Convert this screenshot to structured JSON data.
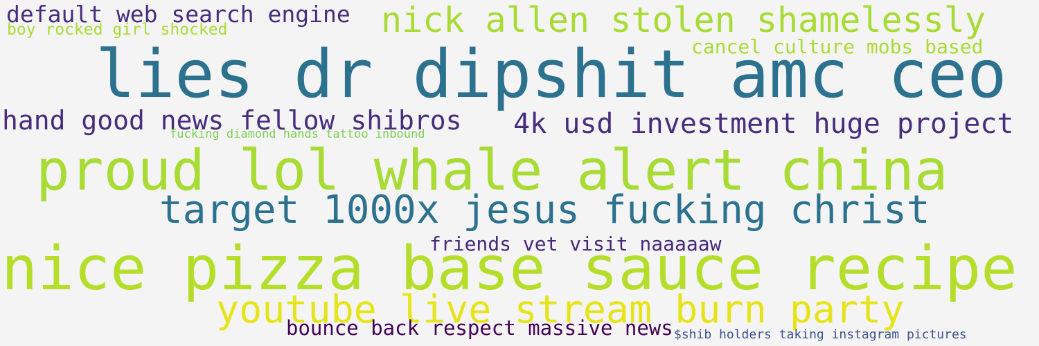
{
  "cloud": {
    "phrases": [
      {
        "text": "default web search engine",
        "color": "#472d7b"
      },
      {
        "text": "boy rocked girl shocked",
        "color": "#a8db34"
      },
      {
        "text": "nick allen stolen shamelessly",
        "color": "#a8db34"
      },
      {
        "text": "cancel culture mobs based",
        "color": "#a8db34"
      },
      {
        "text": "lies dr dipshit amc ceo",
        "color": "#2c728e"
      },
      {
        "text": "hand good news fellow shibros",
        "color": "#472d7b"
      },
      {
        "text": "4k usd investment huge project",
        "color": "#472d7b"
      },
      {
        "text": "fucking diamond hands tattoo inbound",
        "color": "#7ad151"
      },
      {
        "text": "proud lol whale alert china",
        "color": "#a8db34"
      },
      {
        "text": "target 1000x jesus fucking christ",
        "color": "#2c728e"
      },
      {
        "text": "friends vet visit naaaaaw",
        "color": "#482878"
      },
      {
        "text": "nice pizza base sauce recipe",
        "color": "#b5de2b"
      },
      {
        "text": "youtube live stream burn party",
        "color": "#e6e419"
      },
      {
        "text": "bounce back respect massive news",
        "color": "#440154"
      },
      {
        "text": "$shib holders taking instagram pictures",
        "color": "#3b528b"
      }
    ]
  }
}
